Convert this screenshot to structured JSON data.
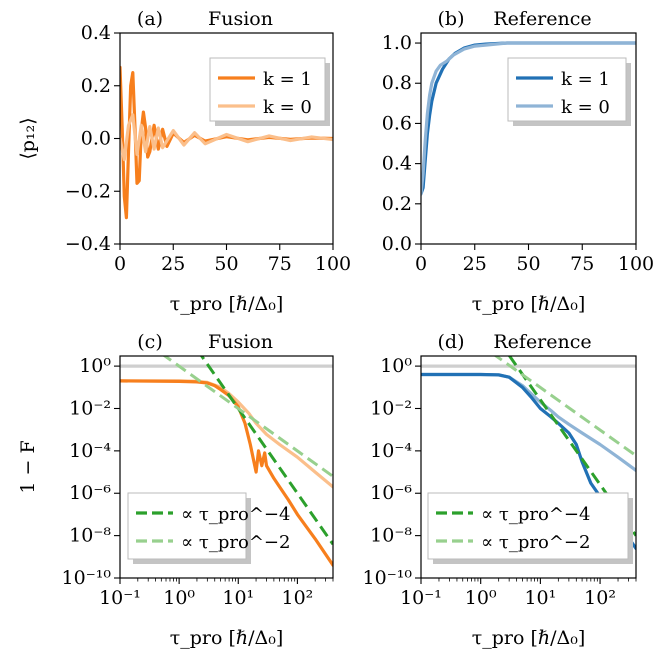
{
  "colors": {
    "fusion_k1": "#f77f1d",
    "fusion_k0": "#fbbf8b",
    "reference_k1": "#2171b5",
    "reference_k0": "#8fb4d6",
    "power4": "#2ca02c",
    "power2": "#98d08e",
    "reference_line": "#cfcfcf"
  },
  "chart_data": [
    {
      "id": "a",
      "type": "line",
      "panel_label": "(a)",
      "title": "Fusion",
      "ylabel": "⟨p₁₂⟩",
      "xlabel": "τ_pro [ℏ/Δ₀]",
      "xlim": [
        0,
        100
      ],
      "ylim": [
        -0.4,
        0.4
      ],
      "xticks": [
        "0",
        "25",
        "50",
        "75",
        "100"
      ],
      "yticks": [
        "−0.4",
        "−0.2",
        "0.0",
        "0.2",
        "0.4"
      ],
      "legend_position": "top-right",
      "series": [
        {
          "name": "k = 1",
          "color": "#f77f1d",
          "x": [
            0,
            1,
            2,
            3,
            4,
            5,
            6,
            7,
            8,
            9,
            10,
            11,
            12,
            13,
            14,
            16,
            18,
            20,
            22,
            25,
            30,
            35,
            40,
            50,
            60,
            70,
            80,
            90,
            100
          ],
          "y": [
            0.27,
            0.05,
            -0.22,
            -0.3,
            -0.05,
            0.2,
            0.25,
            0.05,
            -0.17,
            -0.16,
            0.03,
            0.1,
            0.04,
            -0.07,
            -0.05,
            0.05,
            -0.04,
            0.035,
            -0.03,
            0.02,
            -0.015,
            0.012,
            -0.01,
            0.007,
            -0.005,
            0.004,
            -0.003,
            0.002,
            0.0
          ]
        },
        {
          "name": "k = 0",
          "color": "#fbbf8b",
          "x": [
            0,
            2,
            4,
            6,
            8,
            10,
            12,
            14,
            16,
            18,
            20,
            25,
            30,
            35,
            40,
            50,
            60,
            70,
            80,
            90,
            100
          ],
          "y": [
            0.0,
            -0.08,
            0.05,
            0.09,
            -0.06,
            0.05,
            -0.05,
            0.045,
            -0.04,
            0.04,
            -0.035,
            0.03,
            -0.025,
            0.022,
            -0.02,
            0.015,
            -0.012,
            0.01,
            -0.008,
            0.006,
            -0.004
          ]
        }
      ]
    },
    {
      "id": "b",
      "type": "line",
      "panel_label": "(b)",
      "title": "Reference",
      "ylabel": "",
      "xlabel": "τ_pro [ℏ/Δ₀]",
      "xlim": [
        0,
        100
      ],
      "ylim": [
        0.0,
        1.05
      ],
      "xticks": [
        "0",
        "25",
        "50",
        "75",
        "100"
      ],
      "yticks": [
        "0.0",
        "0.2",
        "0.4",
        "0.6",
        "0.8",
        "1.0"
      ],
      "legend_position": "right",
      "series": [
        {
          "name": "k = 1",
          "color": "#2171b5",
          "x": [
            0,
            1,
            2,
            3,
            4,
            5,
            7,
            10,
            13,
            16,
            20,
            25,
            30,
            40,
            50,
            60,
            80,
            100
          ],
          "y": [
            0.25,
            0.28,
            0.42,
            0.55,
            0.64,
            0.71,
            0.8,
            0.87,
            0.92,
            0.95,
            0.975,
            0.99,
            0.995,
            1.0,
            1.0,
            1.0,
            1.0,
            1.0
          ]
        },
        {
          "name": "k = 0",
          "color": "#8fb4d6",
          "x": [
            0,
            1,
            2,
            3,
            4,
            5,
            7,
            9,
            12,
            15,
            20,
            25,
            30,
            40,
            50,
            100
          ],
          "y": [
            0.25,
            0.35,
            0.52,
            0.65,
            0.74,
            0.8,
            0.86,
            0.89,
            0.91,
            0.94,
            0.97,
            0.985,
            0.99,
            1.0,
            1.0,
            1.0
          ]
        }
      ]
    },
    {
      "id": "c",
      "type": "line",
      "panel_label": "(c)",
      "title": "Fusion",
      "ylabel": "1 − F",
      "xlabel": "τ_pro [ℏ/Δ₀]",
      "xscale": "log",
      "yscale": "log",
      "xlim": [
        0.1,
        400
      ],
      "ylim": [
        1e-10,
        3
      ],
      "xticks": [
        "10⁻¹",
        "10⁰",
        "10¹",
        "10²"
      ],
      "yticks": [
        "10⁻¹⁰",
        "10⁻⁸",
        "10⁻⁶",
        "10⁻⁴",
        "10⁻²",
        "10⁰"
      ],
      "legend_position": "bottom-left",
      "series": [
        {
          "name": "",
          "color": "#cfcfcf",
          "x": [
            0.1,
            400
          ],
          "y": [
            1.0,
            1.0
          ]
        },
        {
          "name": "",
          "color": "#fbbf8b",
          "x": [
            0.1,
            1,
            2,
            3,
            5,
            7,
            10,
            15,
            20,
            30,
            50,
            100,
            200,
            400
          ],
          "y": [
            0.2,
            0.2,
            0.19,
            0.17,
            0.1,
            0.05,
            0.02,
            0.006,
            0.002,
            0.0006,
            0.0002,
            5e-05,
            1e-05,
            2e-06
          ]
        },
        {
          "name": "",
          "color": "#f77f1d",
          "x": [
            0.1,
            1,
            2,
            3,
            4,
            5,
            7,
            10,
            13,
            16,
            20,
            22,
            25,
            28,
            30,
            40,
            50,
            70,
            100,
            200,
            400
          ],
          "y": [
            0.2,
            0.19,
            0.18,
            0.16,
            0.12,
            0.08,
            0.04,
            0.012,
            0.002,
            0.0002,
            1e-05,
            0.0001,
            2e-05,
            8e-05,
            2e-05,
            5e-06,
            2e-06,
            5e-07,
            1e-07,
            7e-09,
            4e-10
          ]
        },
        {
          "name": "∝ τ_pro^−4",
          "color": "#2ca02c",
          "dashed": true,
          "x": [
            2,
            400
          ],
          "y": [
            6.25,
            3.9e-09
          ]
        },
        {
          "name": "∝ τ_pro^−2",
          "color": "#98d08e",
          "dashed": true,
          "x": [
            0.5,
            400
          ],
          "y": [
            4.0,
            6.25e-06
          ]
        }
      ]
    },
    {
      "id": "d",
      "type": "line",
      "panel_label": "(d)",
      "title": "Reference",
      "ylabel": "",
      "xlabel": "τ_pro [ℏ/Δ₀]",
      "xscale": "log",
      "yscale": "log",
      "xlim": [
        0.1,
        400
      ],
      "ylim": [
        1e-10,
        3
      ],
      "xticks": [
        "10⁻¹",
        "10⁰",
        "10¹",
        "10²"
      ],
      "yticks": [
        "10⁻¹⁰",
        "10⁻⁸",
        "10⁻⁶",
        "10⁻⁴",
        "10⁻²",
        "10⁰"
      ],
      "legend_position": "bottom-right",
      "series": [
        {
          "name": "",
          "color": "#cfcfcf",
          "x": [
            0.1,
            400
          ],
          "y": [
            1.0,
            1.0
          ]
        },
        {
          "name": "",
          "color": "#8fb4d6",
          "x": [
            0.1,
            1,
            2,
            3,
            5,
            7,
            10,
            15,
            20,
            30,
            50,
            100,
            200,
            400
          ],
          "y": [
            0.4,
            0.4,
            0.38,
            0.3,
            0.12,
            0.05,
            0.02,
            0.008,
            0.004,
            0.0018,
            0.0007,
            0.0002,
            5e-05,
            1.2e-05
          ]
        },
        {
          "name": "",
          "color": "#2171b5",
          "x": [
            0.1,
            1,
            2,
            3,
            5,
            7,
            10,
            15,
            20,
            30,
            40,
            50,
            70,
            100,
            200,
            400
          ],
          "y": [
            0.4,
            0.4,
            0.39,
            0.3,
            0.1,
            0.035,
            0.01,
            0.004,
            0.002,
            0.0007,
            0.0002,
            3e-05,
            3e-06,
            7e-07,
            4e-08,
            2.5e-09
          ]
        },
        {
          "name": "∝ τ_pro^−4",
          "color": "#2ca02c",
          "dashed": true,
          "x": [
            2,
            400
          ],
          "y": [
            16,
            1e-08
          ]
        },
        {
          "name": "∝ τ_pro^−2",
          "color": "#98d08e",
          "dashed": true,
          "x": [
            0.5,
            400
          ],
          "y": [
            40,
            6e-05
          ]
        }
      ]
    }
  ],
  "legends": {
    "a": [
      {
        "label": "k = 1",
        "color": "#f77f1d"
      },
      {
        "label": "k = 0",
        "color": "#fbbf8b"
      }
    ],
    "b": [
      {
        "label": "k = 1",
        "color": "#2171b5"
      },
      {
        "label": "k = 0",
        "color": "#8fb4d6"
      }
    ],
    "c": [
      {
        "label": "∝ τ_pro^−4",
        "color": "#2ca02c"
      },
      {
        "label": "∝ τ_pro^−2",
        "color": "#98d08e"
      }
    ],
    "d": [
      {
        "label": "∝ τ_pro^−4",
        "color": "#2ca02c"
      },
      {
        "label": "∝ τ_pro^−2",
        "color": "#98d08e"
      }
    ]
  }
}
